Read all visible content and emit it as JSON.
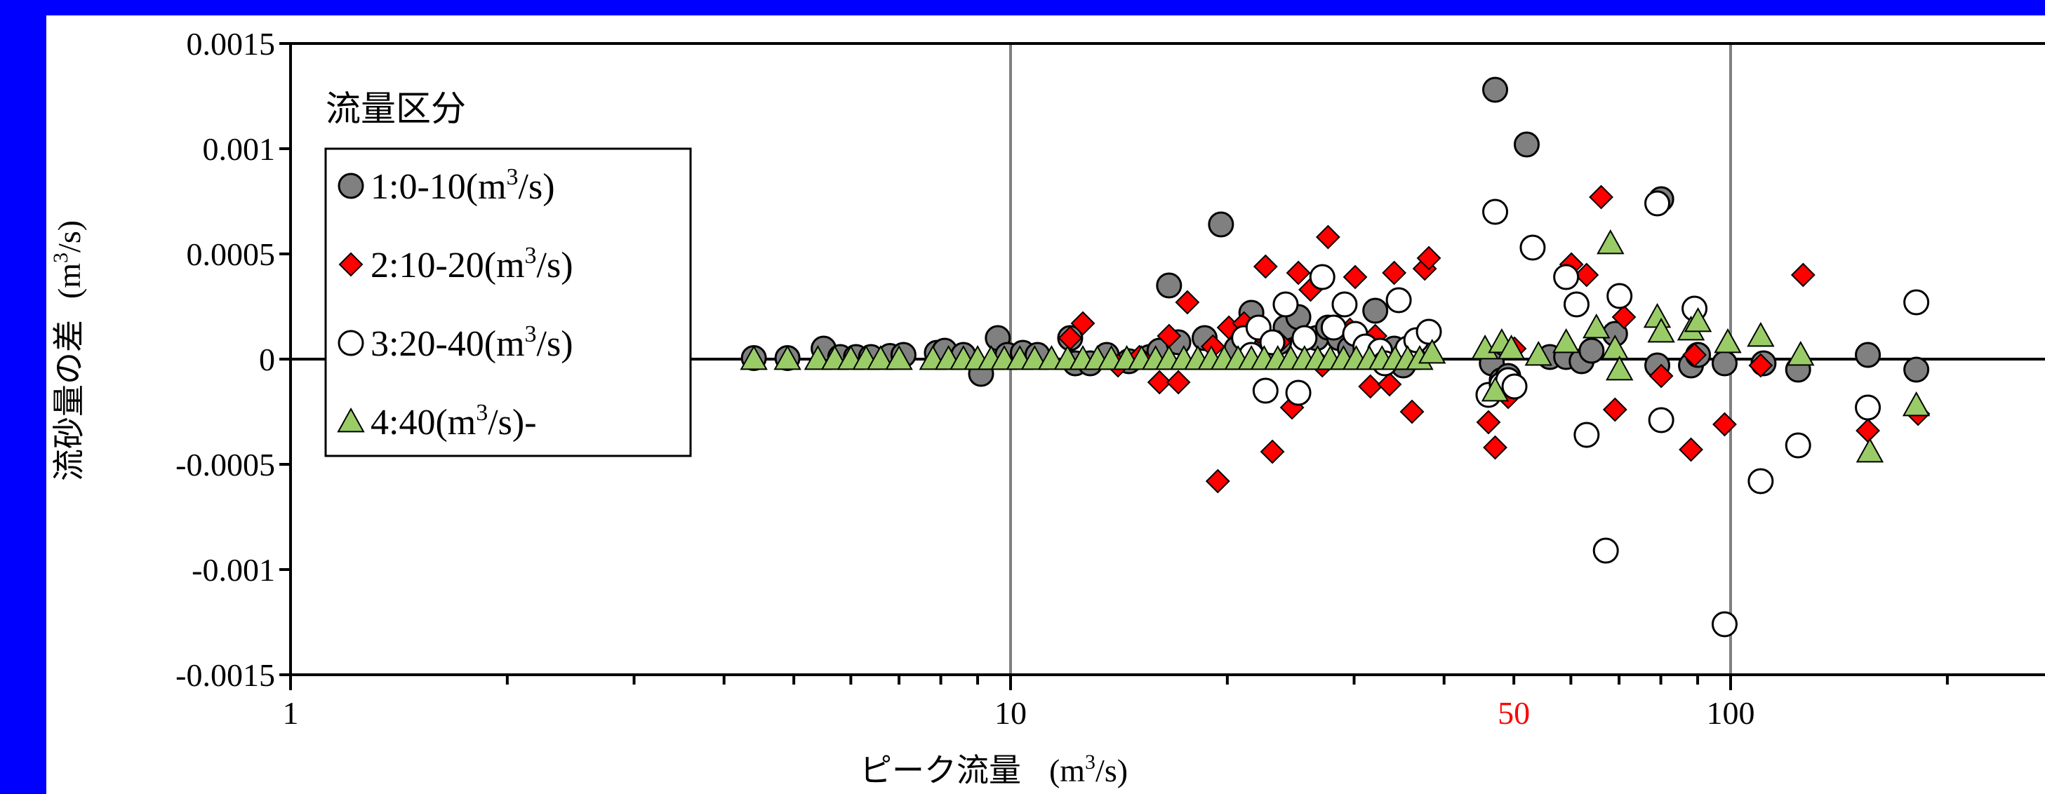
{
  "chart_data": {
    "type": "scatter",
    "title": "",
    "xlabel": "ピーク流量",
    "xlabel_unit_base": "(m",
    "xlabel_unit_sup": "3",
    "xlabel_unit_tail": "/s)",
    "ylabel": "流砂量の差",
    "ylabel_unit_base": "(m",
    "ylabel_unit_sup": "3",
    "ylabel_unit_tail": "/s)",
    "x_scale": "log",
    "xlim": [
      1,
      250
    ],
    "ylim": [
      -0.0015,
      0.0015
    ],
    "x_tick_labels": [
      {
        "value": 1,
        "label": "1"
      },
      {
        "value": 10,
        "label": "10"
      },
      {
        "value": 50,
        "label": "50",
        "color": "#ff0000"
      },
      {
        "value": 100,
        "label": "100"
      }
    ],
    "y_tick_labels": [
      {
        "value": 0.0015,
        "label": "0.0015"
      },
      {
        "value": 0.001,
        "label": "0.001"
      },
      {
        "value": 0.0005,
        "label": "0.0005"
      },
      {
        "value": 0,
        "label": "0"
      },
      {
        "value": -0.0005,
        "label": "-0.0005"
      },
      {
        "value": -0.001,
        "label": "-0.001"
      },
      {
        "value": -0.0015,
        "label": "-0.0015"
      }
    ],
    "vertical_gridlines": [
      10,
      100
    ],
    "zero_line": 0,
    "legend": {
      "title": "流量区分",
      "position": "top-left"
    },
    "series": [
      {
        "name_base": "1:0-10(m",
        "name_sup": "3",
        "name_tail": "/s)",
        "marker": "circle",
        "fill": "#808080",
        "stroke": "#000000",
        "points": [
          [
            4.4,
            5e-06
          ],
          [
            4.9,
            5e-06
          ],
          [
            5.5,
            5e-05
          ],
          [
            5.8,
            1e-05
          ],
          [
            6.1,
            1e-05
          ],
          [
            6.4,
            1e-05
          ],
          [
            6.8,
            1.5e-05
          ],
          [
            7.1,
            2e-05
          ],
          [
            7.9,
            3e-05
          ],
          [
            8.1,
            4e-05
          ],
          [
            8.6,
            2e-05
          ],
          [
            9.1,
            -7e-05
          ],
          [
            9.6,
            0.0001
          ],
          [
            9.9,
            2e-05
          ],
          [
            10.4,
            3e-05
          ],
          [
            10.9,
            2e-05
          ],
          [
            12.1,
            0.0001
          ],
          [
            12.3,
            -2e-05
          ],
          [
            12.9,
            -2e-05
          ],
          [
            13.6,
            2e-05
          ],
          [
            14.6,
            -1e-05
          ],
          [
            15.6,
            1e-05
          ],
          [
            16.1,
            4e-05
          ],
          [
            16.6,
            0.00035
          ],
          [
            17.1,
            8e-05
          ],
          [
            18.6,
            0.0001
          ],
          [
            19.6,
            0.00064
          ],
          [
            20.6,
            5e-05
          ],
          [
            21.1,
            0.00012
          ],
          [
            21.6,
            0.00022
          ],
          [
            22.1,
            0.0001
          ],
          [
            23.1,
            6e-05
          ],
          [
            23.6,
            8e-05
          ],
          [
            24.1,
            0.00015
          ],
          [
            25.1,
            0.0002
          ],
          [
            26.6,
            0.0001
          ],
          [
            27.6,
            0.00015
          ],
          [
            28.6,
            0.0001
          ],
          [
            29.6,
            5e-05
          ],
          [
            31.1,
            3e-05
          ],
          [
            32.1,
            0.00023
          ],
          [
            33.1,
            3e-05
          ],
          [
            34.1,
            5e-05
          ],
          [
            35.1,
            -3e-05
          ],
          [
            36.1,
            2e-05
          ],
          [
            46.6,
            -2e-05
          ],
          [
            48.1,
            -0.0001
          ],
          [
            49.1,
            -8e-05
          ],
          [
            52.1,
            0.00102
          ],
          [
            56.1,
            1e-05
          ],
          [
            59.1,
            1e-05
          ],
          [
            62.1,
            -1e-05
          ],
          [
            64.1,
            4e-05
          ],
          [
            69.1,
            0.00012
          ],
          [
            79.1,
            -3e-05
          ],
          [
            80.1,
            0.00076
          ],
          [
            88.1,
            -3e-05
          ],
          [
            90.1,
            2e-05
          ],
          [
            98.1,
            -2e-05
          ],
          [
            111.1,
            -2e-05
          ],
          [
            124.1,
            -5e-05
          ],
          [
            155.1,
            2e-05
          ],
          [
            181.1,
            -5e-05
          ],
          [
            47.1,
            0.00128
          ]
        ]
      },
      {
        "name_base": "2:10-20(m",
        "name_sup": "3",
        "name_tail": "/s)",
        "marker": "diamond",
        "fill": "#ff0000",
        "stroke": "#000000",
        "points": [
          [
            12.1,
            0.0001
          ],
          [
            12.6,
            0.00017
          ],
          [
            14.1,
            -3e-05
          ],
          [
            15.1,
            1e-05
          ],
          [
            16.1,
            -0.00011
          ],
          [
            16.6,
            0.00011
          ],
          [
            17.1,
            -0.00011
          ],
          [
            17.6,
            0.00027
          ],
          [
            19.1,
            6e-05
          ],
          [
            19.4,
            -0.00058
          ],
          [
            20.1,
            0.00015
          ],
          [
            21.1,
            0.00017
          ],
          [
            22.1,
            0.00013
          ],
          [
            22.6,
            0.00044
          ],
          [
            23.1,
            -0.00044
          ],
          [
            23.6,
            8e-05
          ],
          [
            24.6,
            -0.00023
          ],
          [
            25.1,
            0.00041
          ],
          [
            26.1,
            0.00033
          ],
          [
            27.1,
            -3e-05
          ],
          [
            27.6,
            0.00058
          ],
          [
            29.6,
            0.00014
          ],
          [
            30.1,
            0.00039
          ],
          [
            31.6,
            -0.00013
          ],
          [
            32.1,
            0.00011
          ],
          [
            33.6,
            -0.00012
          ],
          [
            34.1,
            0.00041
          ],
          [
            36.1,
            -0.00025
          ],
          [
            37.6,
            0.00043
          ],
          [
            38.1,
            0.00048
          ],
          [
            46.1,
            -0.0003
          ],
          [
            47.1,
            -0.00042
          ],
          [
            49.1,
            -0.00018
          ],
          [
            50.1,
            5e-05
          ],
          [
            60.1,
            0.00045
          ],
          [
            63.1,
            0.0004
          ],
          [
            66.1,
            0.00077
          ],
          [
            69.1,
            -0.00024
          ],
          [
            71.1,
            0.0002
          ],
          [
            80.1,
            -8e-05
          ],
          [
            88.1,
            -0.00043
          ],
          [
            89.1,
            2e-05
          ],
          [
            98.1,
            -0.00031
          ],
          [
            110.1,
            -3e-05
          ],
          [
            126.1,
            0.0004
          ],
          [
            155.1,
            -0.00034
          ],
          [
            182.1,
            -0.00026
          ]
        ]
      },
      {
        "name_base": "3:20-40(m",
        "name_sup": "3",
        "name_tail": "/s)",
        "marker": "circle",
        "fill": "#ffffff",
        "stroke": "#000000",
        "points": [
          [
            21.1,
            0.0001
          ],
          [
            21.6,
            2e-05
          ],
          [
            22.1,
            0.00015
          ],
          [
            22.6,
            -0.00015
          ],
          [
            23.1,
            8e-05
          ],
          [
            24.1,
            0.00026
          ],
          [
            25.1,
            -0.00016
          ],
          [
            25.6,
            0.0001
          ],
          [
            27.1,
            0.00039
          ],
          [
            28.1,
            0.00015
          ],
          [
            29.1,
            0.00026
          ],
          [
            30.1,
            0.00012
          ],
          [
            31.1,
            6e-05
          ],
          [
            32.6,
            4e-05
          ],
          [
            33.1,
            -2e-05
          ],
          [
            34.6,
            0.00028
          ],
          [
            35.6,
            5e-05
          ],
          [
            36.6,
            9e-05
          ],
          [
            38.1,
            0.00013
          ],
          [
            46.1,
            -0.00017
          ],
          [
            47.1,
            0.0007
          ],
          [
            48.1,
            -0.00012
          ],
          [
            49.1,
            -0.0001
          ],
          [
            50.1,
            -0.00013
          ],
          [
            53.1,
            0.00053
          ],
          [
            59.1,
            0.00039
          ],
          [
            61.1,
            0.00026
          ],
          [
            63.1,
            -0.00036
          ],
          [
            67.1,
            -0.00091
          ],
          [
            70.1,
            0.0003
          ],
          [
            79.1,
            0.00074
          ],
          [
            80.1,
            -0.00029
          ],
          [
            89.1,
            0.00024
          ],
          [
            98.1,
            -0.00126
          ],
          [
            110.1,
            -0.00058
          ],
          [
            124.1,
            -0.00041
          ],
          [
            155.1,
            -0.00023
          ],
          [
            181.1,
            0.00027
          ]
        ]
      },
      {
        "name_base": "4:40(m",
        "name_sup": "3",
        "name_tail": "/s)-",
        "marker": "triangle",
        "fill": "#99cc66",
        "stroke": "#000000",
        "points": [
          [
            4.4,
            0
          ],
          [
            4.9,
            0
          ],
          [
            5.4,
            0
          ],
          [
            5.7,
            0
          ],
          [
            6.0,
            0
          ],
          [
            6.3,
            0
          ],
          [
            6.6,
            0
          ],
          [
            7.0,
            0
          ],
          [
            7.8,
            0
          ],
          [
            8.2,
            0
          ],
          [
            8.6,
            0
          ],
          [
            9.0,
            0
          ],
          [
            9.4,
            0
          ],
          [
            9.8,
            0
          ],
          [
            10.3,
            0
          ],
          [
            10.8,
            0
          ],
          [
            11.4,
            0
          ],
          [
            12.0,
            0
          ],
          [
            12.6,
            0
          ],
          [
            13.2,
            0
          ],
          [
            13.8,
            0
          ],
          [
            14.5,
            0
          ],
          [
            15.2,
            0
          ],
          [
            15.9,
            0
          ],
          [
            16.6,
            0
          ],
          [
            17.4,
            0
          ],
          [
            18.2,
            0
          ],
          [
            19.0,
            0
          ],
          [
            19.8,
            0
          ],
          [
            20.7,
            0
          ],
          [
            21.6,
            0
          ],
          [
            22.5,
            0
          ],
          [
            23.5,
            0
          ],
          [
            24.5,
            0
          ],
          [
            25.6,
            0
          ],
          [
            26.7,
            0
          ],
          [
            27.8,
            0
          ],
          [
            29.0,
            0
          ],
          [
            30.2,
            0
          ],
          [
            31.5,
            0
          ],
          [
            32.8,
            0
          ],
          [
            34.2,
            0
          ],
          [
            35.6,
            0
          ],
          [
            37.0,
            0
          ],
          [
            38.5,
            3e-05
          ],
          [
            45.6,
            5e-05
          ],
          [
            47.1,
            -0.00015
          ],
          [
            48.1,
            8e-05
          ],
          [
            49.6,
            5e-05
          ],
          [
            54.1,
            2e-05
          ],
          [
            59.1,
            8e-05
          ],
          [
            65.1,
            0.00015
          ],
          [
            68.1,
            0.00055
          ],
          [
            69.1,
            5e-05
          ],
          [
            70.1,
            -5e-05
          ],
          [
            79.1,
            0.0002
          ],
          [
            80.1,
            0.00013
          ],
          [
            88.1,
            0.00014
          ],
          [
            90.1,
            0.00018
          ],
          [
            99.1,
            8e-05
          ],
          [
            110.1,
            0.00011
          ],
          [
            125.1,
            2e-05
          ],
          [
            156.1,
            -0.00044
          ],
          [
            181.1,
            -0.00022
          ]
        ]
      }
    ]
  }
}
